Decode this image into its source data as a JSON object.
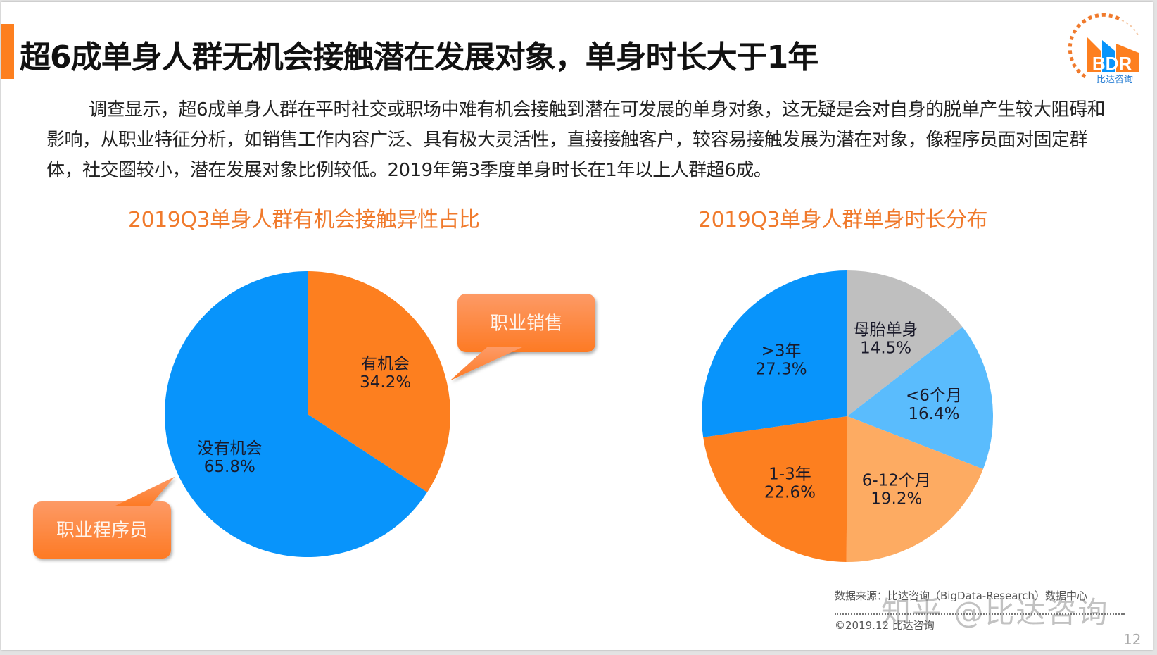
{
  "slide": {
    "title": "超6成单身人群无机会接触潜在发展对象，单身时长大于1年",
    "body_text": "调查显示，超6成单身人群在平时社交或职场中难有机会接触到潜在可发展的单身对象，这无疑是会对自身的脱单产生较大阻碍和影响，从职业特征分析，如销售工作内容广泛、具有极大灵活性，直接接触客户，较容易接触发展为潜在对象，像程序员面对固定群体，社交圈较小，潜在发展对象比例较低。2019年第3季度单身时长在1年以上人群超6成。",
    "logo": {
      "brand": "BDR",
      "name": "比达咨询",
      "icon": "bdr-logo-icon"
    },
    "footer": {
      "source": "数据来源：比达咨询（BigData-Research）数据中心",
      "copyright": "©2019.12 比达咨询",
      "page_number": "12",
      "watermark": "知乎 @比达咨询"
    },
    "colors": {
      "accent_orange": "#fd7f1f",
      "blue": "#0894fb",
      "light_blue": "#5abcfd",
      "light_orange": "#fdab62",
      "gray": "#bfbfbf",
      "title_orange": "#f07a2c"
    }
  },
  "chart_data": [
    {
      "type": "pie",
      "title": "2019Q3单身人群有机会接触异性占比",
      "unit": "%",
      "slices": [
        {
          "label": "有机会",
          "value": 34.2,
          "display": "34.2%",
          "color": "#fd7f1f"
        },
        {
          "label": "没有机会",
          "value": 65.8,
          "display": "65.8%",
          "color": "#0894fb"
        }
      ],
      "start": "12 o'clock",
      "direction": "clockwise",
      "annotations": [
        {
          "text": "职业销售",
          "points_to": "有机会"
        },
        {
          "text": "职业程序员",
          "points_to": "没有机会"
        }
      ]
    },
    {
      "type": "pie",
      "title": "2019Q3单身人群单身时长分布",
      "unit": "%",
      "slices": [
        {
          "label": "母胎单身",
          "value": 14.5,
          "display": "14.5%",
          "color": "#bfbfbf"
        },
        {
          "label": "<6个月",
          "value": 16.4,
          "display": "16.4%",
          "color": "#5abcfd"
        },
        {
          "label": "6-12个月",
          "value": 19.2,
          "display": "19.2%",
          "color": "#fdab62"
        },
        {
          "label": "1-3年",
          "value": 22.6,
          "display": "22.6%",
          "color": "#fd7f1f"
        },
        {
          "label": ">3年",
          "value": 27.3,
          "display": "27.3%",
          "color": "#0894fb"
        }
      ],
      "start": "12 o'clock",
      "direction": "clockwise"
    }
  ]
}
